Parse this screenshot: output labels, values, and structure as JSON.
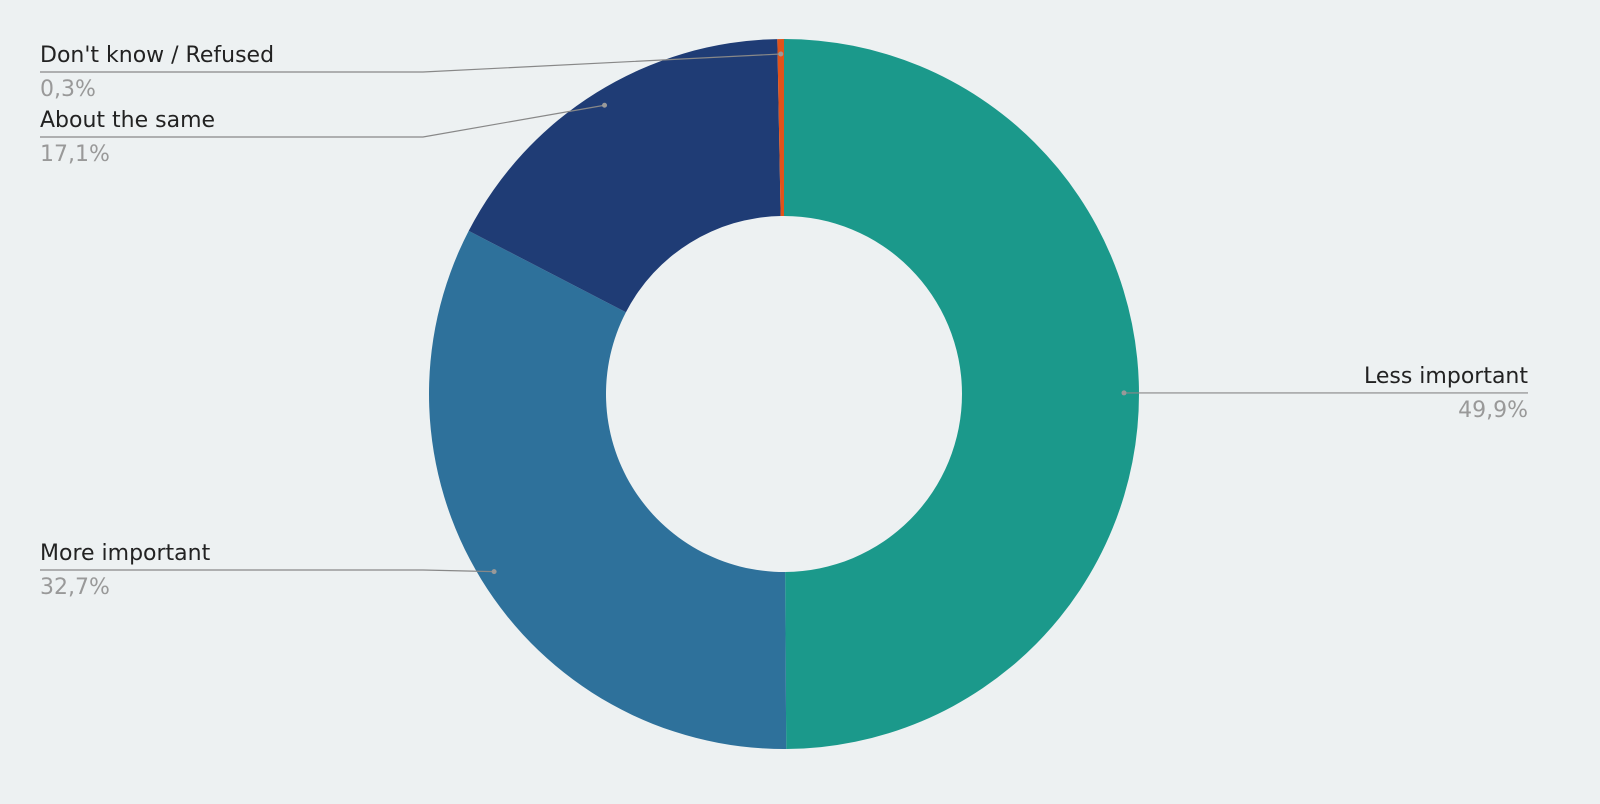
{
  "chart_data": {
    "type": "donut",
    "categories": [
      "Less important",
      "More important",
      "About the same",
      "Don't know / Refused"
    ],
    "values": [
      49.9,
      32.7,
      17.1,
      0.3
    ],
    "value_labels": [
      "49,9%",
      "32,7%",
      "17,1%",
      "0,3%"
    ],
    "colors": [
      "#1b998b",
      "#2e719b",
      "#1f3c75",
      "#e0531a"
    ]
  }
}
